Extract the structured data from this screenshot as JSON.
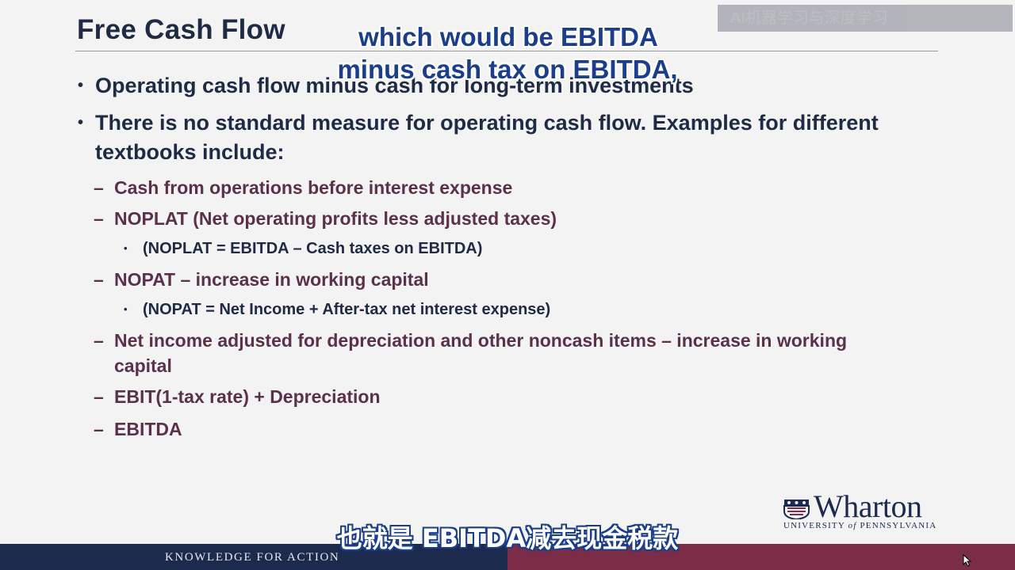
{
  "slide": {
    "title": "Free Cash Flow",
    "watermark": "AI机器学习与深度学习",
    "bullets": [
      {
        "text": "Operating cash flow minus cash for long-term investments"
      },
      {
        "text": "There is no standard measure for operating cash flow.  Examples for different textbooks include:"
      }
    ],
    "sub_items": [
      {
        "text": "Cash from operations before interest expense"
      },
      {
        "text": "NOPLAT (Net operating profits less adjusted taxes)"
      },
      {
        "text": "(NOPLAT = EBITDA – Cash taxes on EBITDA)"
      },
      {
        "text": "NOPAT – increase in working capital"
      },
      {
        "text": "(NOPAT = Net Income + After-tax net interest expense)"
      },
      {
        "text": "Net income adjusted for depreciation and other noncash items – increase in working capital"
      },
      {
        "text": "EBIT(1-tax rate) + Depreciation"
      },
      {
        "text": "EBITDA"
      }
    ],
    "bullet_mark": "•",
    "dash_mark": "–"
  },
  "captions": {
    "english_line1": "which would be EBITDA",
    "english_line2": "minus cash tax on EBITDA,",
    "chinese": "也就是 EBITDA减去现金税款"
  },
  "logo": {
    "wordmark": "Wharton",
    "subtitle_prefix": "UNIVERSITY ",
    "subtitle_of": "of",
    "subtitle_suffix": " PENNSYLVANIA"
  },
  "footer": {
    "tagline": "KNOWLEDGE FOR ACTION"
  },
  "colors": {
    "title": "#1f2a44",
    "sub_items": "#5a3149",
    "footer_navy": "#1c2a4e",
    "footer_maroon": "#7b2c46",
    "caption_blue": "#1b3e8c"
  },
  "icons": {
    "logo_shield": "wharton-shield-icon",
    "cursor": "mouse-cursor-icon"
  }
}
